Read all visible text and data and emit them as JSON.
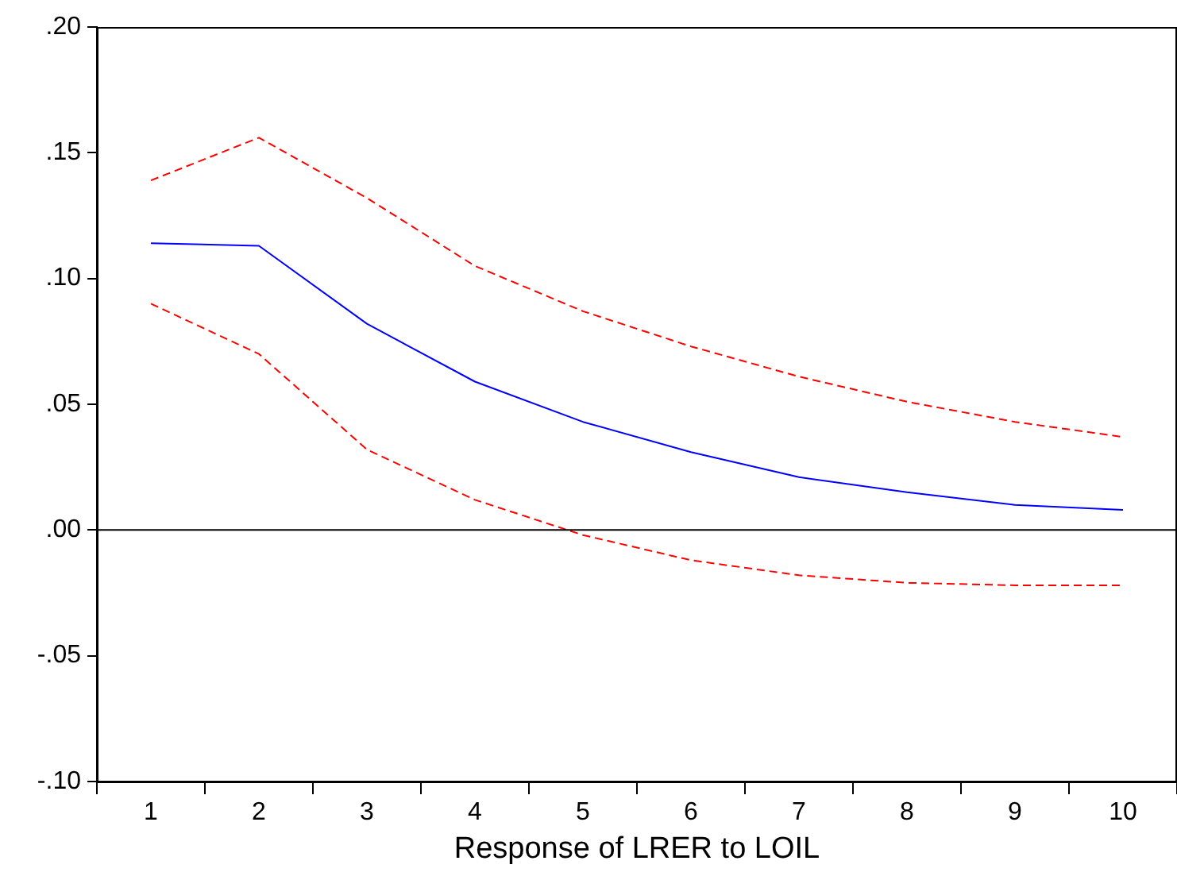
{
  "chart_data": {
    "type": "line",
    "xlabel": "Response of LRER to LOIL",
    "categories": [
      "1",
      "2",
      "3",
      "4",
      "5",
      "6",
      "7",
      "8",
      "9",
      "10"
    ],
    "series": [
      {
        "color": "#0000ff",
        "line_style": "solid",
        "values": [
          0.114,
          0.113,
          0.082,
          0.059,
          0.043,
          0.031,
          0.021,
          0.015,
          0.01,
          0.008
        ]
      },
      {
        "color": "#ff0000",
        "line_style": "dashed",
        "values": [
          0.139,
          0.156,
          0.132,
          0.105,
          0.087,
          0.073,
          0.061,
          0.051,
          0.043,
          0.037
        ]
      },
      {
        "color": "#ff0000",
        "line_style": "dashed",
        "values": [
          0.09,
          0.07,
          0.032,
          0.012,
          -0.002,
          -0.012,
          -0.018,
          -0.021,
          -0.022,
          -0.022
        ]
      }
    ],
    "ylim": [
      -0.1,
      0.2
    ],
    "yticks": [
      {
        "value": -0.1,
        "label": "-.10"
      },
      {
        "value": -0.05,
        "label": "-.05"
      },
      {
        "value": 0,
        "label": ".00"
      },
      {
        "value": 0.05,
        "label": ".05"
      },
      {
        "value": 0.1,
        "label": ".10"
      },
      {
        "value": 0.15,
        "label": ".15"
      },
      {
        "value": 0.2,
        "label": ".20"
      }
    ],
    "ref_lines": [
      {
        "axis": "y",
        "value": 0,
        "color": "#000000"
      }
    ],
    "grid": false,
    "legend": false,
    "marker": "none"
  }
}
